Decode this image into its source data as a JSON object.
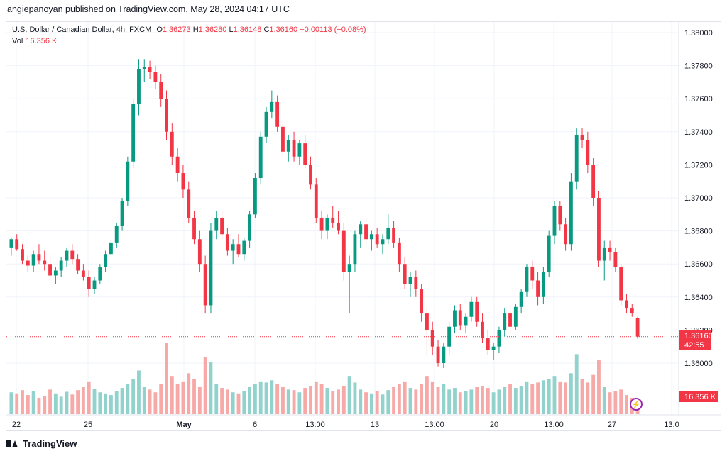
{
  "header": {
    "published": "angiepanoyan published on TradingView.com, May 28, 2024 04:17 UTC"
  },
  "legend": {
    "symbol": "U.S. Dollar / Canadian Dollar, 4h, FXCM",
    "o_label": "O",
    "o": "1.36273",
    "h_label": "H",
    "h": "1.36280",
    "l_label": "L",
    "l": "1.36148",
    "c_label": "C",
    "c": "1.36160",
    "change": "−0.00113 (−0.08%)",
    "vol_label": "Vol",
    "vol": "16.356 K"
  },
  "price_axis": {
    "ticks": [
      "1.38000",
      "1.37800",
      "1.37600",
      "1.37400",
      "1.37200",
      "1.37000",
      "1.36800",
      "1.36600",
      "1.36400",
      "1.36200",
      "1.36000"
    ],
    "last_price": "1.36160",
    "countdown": "42:55",
    "last_volume": "16.356 K"
  },
  "time_axis": {
    "ticks": [
      "22",
      "25",
      "May",
      "6",
      "13:00",
      "13",
      "13:00",
      "20",
      "13:00",
      "27",
      "13:0"
    ]
  },
  "footer": {
    "brand": "TradingView"
  },
  "colors": {
    "up": "#089981",
    "down": "#f23645",
    "up_vol": "#92d2cc",
    "down_vol": "#f7a9a7",
    "grid": "#f0f3fa",
    "label_bg": "#f23645"
  },
  "chart_data": {
    "type": "candlestick",
    "title": "U.S. Dollar / Canadian Dollar, 4h, FXCM",
    "ylim": [
      1.359,
      1.3805
    ],
    "volume_max": 130,
    "last_close": 1.3616,
    "candles": [
      {
        "o": 1.367,
        "h": 1.3676,
        "l": 1.3665,
        "c": 1.3675,
        "v": 40
      },
      {
        "o": 1.3675,
        "h": 1.3678,
        "l": 1.3668,
        "c": 1.3669,
        "v": 38
      },
      {
        "o": 1.3669,
        "h": 1.3672,
        "l": 1.366,
        "c": 1.3662,
        "v": 44
      },
      {
        "o": 1.3662,
        "h": 1.3665,
        "l": 1.3655,
        "c": 1.3659,
        "v": 35
      },
      {
        "o": 1.3659,
        "h": 1.3668,
        "l": 1.3655,
        "c": 1.3666,
        "v": 42
      },
      {
        "o": 1.3666,
        "h": 1.3672,
        "l": 1.366,
        "c": 1.3662,
        "v": 30
      },
      {
        "o": 1.3662,
        "h": 1.3668,
        "l": 1.3656,
        "c": 1.366,
        "v": 33
      },
      {
        "o": 1.366,
        "h": 1.3666,
        "l": 1.365,
        "c": 1.3653,
        "v": 45
      },
      {
        "o": 1.3653,
        "h": 1.3658,
        "l": 1.3648,
        "c": 1.3656,
        "v": 38
      },
      {
        "o": 1.3656,
        "h": 1.3664,
        "l": 1.3652,
        "c": 1.3662,
        "v": 32
      },
      {
        "o": 1.3662,
        "h": 1.367,
        "l": 1.3658,
        "c": 1.3668,
        "v": 41
      },
      {
        "o": 1.3668,
        "h": 1.3672,
        "l": 1.366,
        "c": 1.3663,
        "v": 36
      },
      {
        "o": 1.3663,
        "h": 1.3666,
        "l": 1.3654,
        "c": 1.3656,
        "v": 44
      },
      {
        "o": 1.3656,
        "h": 1.366,
        "l": 1.365,
        "c": 1.3652,
        "v": 50
      },
      {
        "o": 1.3652,
        "h": 1.3656,
        "l": 1.364,
        "c": 1.3645,
        "v": 60
      },
      {
        "o": 1.3645,
        "h": 1.3652,
        "l": 1.3642,
        "c": 1.365,
        "v": 46
      },
      {
        "o": 1.365,
        "h": 1.366,
        "l": 1.3648,
        "c": 1.3658,
        "v": 40
      },
      {
        "o": 1.3658,
        "h": 1.3668,
        "l": 1.3655,
        "c": 1.3666,
        "v": 38
      },
      {
        "o": 1.3666,
        "h": 1.3675,
        "l": 1.3664,
        "c": 1.3673,
        "v": 35
      },
      {
        "o": 1.3673,
        "h": 1.3685,
        "l": 1.367,
        "c": 1.3683,
        "v": 42
      },
      {
        "o": 1.3683,
        "h": 1.37,
        "l": 1.368,
        "c": 1.3698,
        "v": 48
      },
      {
        "o": 1.3698,
        "h": 1.3725,
        "l": 1.3695,
        "c": 1.3722,
        "v": 55
      },
      {
        "o": 1.3722,
        "h": 1.376,
        "l": 1.3718,
        "c": 1.3757,
        "v": 65
      },
      {
        "o": 1.3757,
        "h": 1.3784,
        "l": 1.375,
        "c": 1.3778,
        "v": 80
      },
      {
        "o": 1.3778,
        "h": 1.3784,
        "l": 1.377,
        "c": 1.3779,
        "v": 50
      },
      {
        "o": 1.3779,
        "h": 1.3783,
        "l": 1.3772,
        "c": 1.3776,
        "v": 45
      },
      {
        "o": 1.3776,
        "h": 1.378,
        "l": 1.3766,
        "c": 1.377,
        "v": 40
      },
      {
        "o": 1.377,
        "h": 1.3775,
        "l": 1.3755,
        "c": 1.376,
        "v": 55
      },
      {
        "o": 1.376,
        "h": 1.3765,
        "l": 1.3735,
        "c": 1.374,
        "v": 130
      },
      {
        "o": 1.374,
        "h": 1.3745,
        "l": 1.372,
        "c": 1.3725,
        "v": 70
      },
      {
        "o": 1.3725,
        "h": 1.373,
        "l": 1.371,
        "c": 1.3715,
        "v": 55
      },
      {
        "o": 1.3715,
        "h": 1.372,
        "l": 1.37,
        "c": 1.3705,
        "v": 60
      },
      {
        "o": 1.3705,
        "h": 1.371,
        "l": 1.3685,
        "c": 1.3688,
        "v": 75
      },
      {
        "o": 1.3688,
        "h": 1.3692,
        "l": 1.3672,
        "c": 1.3675,
        "v": 65
      },
      {
        "o": 1.3675,
        "h": 1.368,
        "l": 1.3655,
        "c": 1.366,
        "v": 50
      },
      {
        "o": 1.366,
        "h": 1.3665,
        "l": 1.363,
        "c": 1.3635,
        "v": 105
      },
      {
        "o": 1.3635,
        "h": 1.3685,
        "l": 1.363,
        "c": 1.368,
        "v": 95
      },
      {
        "o": 1.368,
        "h": 1.3692,
        "l": 1.3675,
        "c": 1.3688,
        "v": 55
      },
      {
        "o": 1.3688,
        "h": 1.3692,
        "l": 1.3675,
        "c": 1.3678,
        "v": 48
      },
      {
        "o": 1.3678,
        "h": 1.3682,
        "l": 1.3665,
        "c": 1.3668,
        "v": 45
      },
      {
        "o": 1.3668,
        "h": 1.3675,
        "l": 1.366,
        "c": 1.3672,
        "v": 40
      },
      {
        "o": 1.3672,
        "h": 1.3678,
        "l": 1.3664,
        "c": 1.3666,
        "v": 38
      },
      {
        "o": 1.3666,
        "h": 1.3676,
        "l": 1.3662,
        "c": 1.3674,
        "v": 42
      },
      {
        "o": 1.3674,
        "h": 1.3692,
        "l": 1.367,
        "c": 1.369,
        "v": 50
      },
      {
        "o": 1.369,
        "h": 1.3715,
        "l": 1.3688,
        "c": 1.3712,
        "v": 55
      },
      {
        "o": 1.3712,
        "h": 1.374,
        "l": 1.3708,
        "c": 1.3737,
        "v": 60
      },
      {
        "o": 1.3737,
        "h": 1.3755,
        "l": 1.3733,
        "c": 1.3752,
        "v": 58
      },
      {
        "o": 1.3752,
        "h": 1.3765,
        "l": 1.3748,
        "c": 1.3758,
        "v": 62
      },
      {
        "o": 1.3758,
        "h": 1.3762,
        "l": 1.374,
        "c": 1.3743,
        "v": 55
      },
      {
        "o": 1.3743,
        "h": 1.3746,
        "l": 1.3725,
        "c": 1.3728,
        "v": 50
      },
      {
        "o": 1.3728,
        "h": 1.3738,
        "l": 1.3722,
        "c": 1.3735,
        "v": 45
      },
      {
        "o": 1.3735,
        "h": 1.374,
        "l": 1.3722,
        "c": 1.3725,
        "v": 44
      },
      {
        "o": 1.3725,
        "h": 1.3735,
        "l": 1.372,
        "c": 1.3733,
        "v": 40
      },
      {
        "o": 1.3733,
        "h": 1.3738,
        "l": 1.3718,
        "c": 1.372,
        "v": 48
      },
      {
        "o": 1.372,
        "h": 1.3725,
        "l": 1.3705,
        "c": 1.3708,
        "v": 52
      },
      {
        "o": 1.3708,
        "h": 1.3712,
        "l": 1.3685,
        "c": 1.3688,
        "v": 60
      },
      {
        "o": 1.3688,
        "h": 1.3692,
        "l": 1.3675,
        "c": 1.368,
        "v": 55
      },
      {
        "o": 1.368,
        "h": 1.369,
        "l": 1.3675,
        "c": 1.3688,
        "v": 48
      },
      {
        "o": 1.3688,
        "h": 1.3695,
        "l": 1.3682,
        "c": 1.3685,
        "v": 42
      },
      {
        "o": 1.3685,
        "h": 1.3692,
        "l": 1.3678,
        "c": 1.368,
        "v": 45
      },
      {
        "o": 1.368,
        "h": 1.3685,
        "l": 1.365,
        "c": 1.3655,
        "v": 52
      },
      {
        "o": 1.3655,
        "h": 1.3665,
        "l": 1.363,
        "c": 1.366,
        "v": 70
      },
      {
        "o": 1.366,
        "h": 1.368,
        "l": 1.3655,
        "c": 1.3678,
        "v": 58
      },
      {
        "o": 1.3678,
        "h": 1.3686,
        "l": 1.367,
        "c": 1.3684,
        "v": 45
      },
      {
        "o": 1.3684,
        "h": 1.3688,
        "l": 1.3672,
        "c": 1.3675,
        "v": 40
      },
      {
        "o": 1.3675,
        "h": 1.368,
        "l": 1.3668,
        "c": 1.3678,
        "v": 38
      },
      {
        "o": 1.3678,
        "h": 1.3682,
        "l": 1.367,
        "c": 1.3672,
        "v": 42
      },
      {
        "o": 1.3672,
        "h": 1.3678,
        "l": 1.3666,
        "c": 1.3675,
        "v": 36
      },
      {
        "o": 1.3675,
        "h": 1.369,
        "l": 1.3672,
        "c": 1.3682,
        "v": 44
      },
      {
        "o": 1.3682,
        "h": 1.3686,
        "l": 1.367,
        "c": 1.3673,
        "v": 50
      },
      {
        "o": 1.3673,
        "h": 1.3676,
        "l": 1.3655,
        "c": 1.366,
        "v": 55
      },
      {
        "o": 1.366,
        "h": 1.3664,
        "l": 1.3645,
        "c": 1.3648,
        "v": 60
      },
      {
        "o": 1.3648,
        "h": 1.3655,
        "l": 1.364,
        "c": 1.3652,
        "v": 48
      },
      {
        "o": 1.3652,
        "h": 1.3656,
        "l": 1.364,
        "c": 1.3645,
        "v": 45
      },
      {
        "o": 1.3645,
        "h": 1.3648,
        "l": 1.3625,
        "c": 1.363,
        "v": 55
      },
      {
        "o": 1.363,
        "h": 1.3634,
        "l": 1.3605,
        "c": 1.362,
        "v": 70
      },
      {
        "o": 1.362,
        "h": 1.3625,
        "l": 1.3605,
        "c": 1.361,
        "v": 60
      },
      {
        "o": 1.361,
        "h": 1.3614,
        "l": 1.3598,
        "c": 1.36,
        "v": 50
      },
      {
        "o": 1.36,
        "h": 1.3612,
        "l": 1.3597,
        "c": 1.361,
        "v": 55
      },
      {
        "o": 1.361,
        "h": 1.3625,
        "l": 1.3605,
        "c": 1.3622,
        "v": 45
      },
      {
        "o": 1.3622,
        "h": 1.3635,
        "l": 1.3618,
        "c": 1.3632,
        "v": 48
      },
      {
        "o": 1.3632,
        "h": 1.3636,
        "l": 1.362,
        "c": 1.3623,
        "v": 40
      },
      {
        "o": 1.3623,
        "h": 1.363,
        "l": 1.3618,
        "c": 1.3628,
        "v": 42
      },
      {
        "o": 1.3628,
        "h": 1.364,
        "l": 1.3625,
        "c": 1.3637,
        "v": 45
      },
      {
        "o": 1.3637,
        "h": 1.364,
        "l": 1.3622,
        "c": 1.3625,
        "v": 50
      },
      {
        "o": 1.3625,
        "h": 1.363,
        "l": 1.3612,
        "c": 1.3615,
        "v": 52
      },
      {
        "o": 1.3615,
        "h": 1.362,
        "l": 1.3605,
        "c": 1.3608,
        "v": 48
      },
      {
        "o": 1.3608,
        "h": 1.3612,
        "l": 1.3602,
        "c": 1.361,
        "v": 40
      },
      {
        "o": 1.361,
        "h": 1.3622,
        "l": 1.3606,
        "c": 1.362,
        "v": 45
      },
      {
        "o": 1.362,
        "h": 1.3633,
        "l": 1.3616,
        "c": 1.363,
        "v": 50
      },
      {
        "o": 1.363,
        "h": 1.3635,
        "l": 1.3618,
        "c": 1.3622,
        "v": 55
      },
      {
        "o": 1.3622,
        "h": 1.3636,
        "l": 1.362,
        "c": 1.3634,
        "v": 48
      },
      {
        "o": 1.3634,
        "h": 1.3645,
        "l": 1.363,
        "c": 1.3643,
        "v": 52
      },
      {
        "o": 1.3643,
        "h": 1.366,
        "l": 1.364,
        "c": 1.3658,
        "v": 60
      },
      {
        "o": 1.3658,
        "h": 1.3662,
        "l": 1.3645,
        "c": 1.365,
        "v": 55
      },
      {
        "o": 1.365,
        "h": 1.3655,
        "l": 1.3635,
        "c": 1.364,
        "v": 58
      },
      {
        "o": 1.364,
        "h": 1.3658,
        "l": 1.3636,
        "c": 1.3655,
        "v": 62
      },
      {
        "o": 1.3655,
        "h": 1.368,
        "l": 1.3652,
        "c": 1.3677,
        "v": 65
      },
      {
        "o": 1.3677,
        "h": 1.3698,
        "l": 1.3672,
        "c": 1.3695,
        "v": 70
      },
      {
        "o": 1.3695,
        "h": 1.3698,
        "l": 1.368,
        "c": 1.3684,
        "v": 60
      },
      {
        "o": 1.3684,
        "h": 1.3688,
        "l": 1.3668,
        "c": 1.3672,
        "v": 58
      },
      {
        "o": 1.3672,
        "h": 1.3715,
        "l": 1.3668,
        "c": 1.371,
        "v": 75
      },
      {
        "o": 1.371,
        "h": 1.3742,
        "l": 1.3705,
        "c": 1.3738,
        "v": 110
      },
      {
        "o": 1.3738,
        "h": 1.3742,
        "l": 1.373,
        "c": 1.3735,
        "v": 65
      },
      {
        "o": 1.3735,
        "h": 1.374,
        "l": 1.3715,
        "c": 1.372,
        "v": 58
      },
      {
        "o": 1.372,
        "h": 1.3724,
        "l": 1.3695,
        "c": 1.37,
        "v": 72
      },
      {
        "o": 1.37,
        "h": 1.3704,
        "l": 1.3658,
        "c": 1.3662,
        "v": 100
      },
      {
        "o": 1.3662,
        "h": 1.3674,
        "l": 1.365,
        "c": 1.367,
        "v": 50
      },
      {
        "o": 1.367,
        "h": 1.3674,
        "l": 1.3662,
        "c": 1.3667,
        "v": 40
      },
      {
        "o": 1.3667,
        "h": 1.367,
        "l": 1.3655,
        "c": 1.3658,
        "v": 42
      },
      {
        "o": 1.3658,
        "h": 1.366,
        "l": 1.3635,
        "c": 1.3638,
        "v": 45
      },
      {
        "o": 1.3638,
        "h": 1.3642,
        "l": 1.363,
        "c": 1.3633,
        "v": 35
      },
      {
        "o": 1.3633,
        "h": 1.3636,
        "l": 1.3628,
        "c": 1.363,
        "v": 30
      },
      {
        "o": 1.36273,
        "h": 1.3628,
        "l": 1.36148,
        "c": 1.3616,
        "v": 16.356
      }
    ]
  }
}
